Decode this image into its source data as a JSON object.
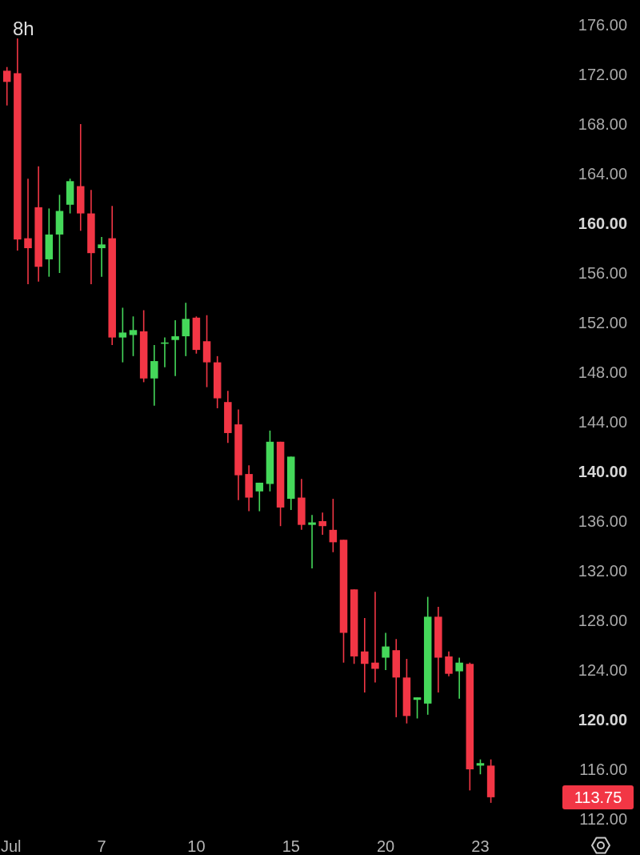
{
  "chart_data": {
    "type": "candlestick",
    "title": "8h",
    "categories": [
      "Jul",
      null,
      null,
      null,
      null,
      null,
      null,
      null,
      null,
      "7",
      null,
      null,
      null,
      null,
      null,
      null,
      null,
      null,
      "10",
      null,
      null,
      null,
      null,
      null,
      null,
      null,
      null,
      "15",
      null,
      null,
      null,
      null,
      null,
      null,
      null,
      null,
      "20",
      null,
      null,
      null,
      null,
      null,
      null,
      null,
      null,
      "23",
      null
    ],
    "ohlc": [
      [
        172.3,
        172.6,
        169.5,
        171.4
      ],
      [
        172.1,
        174.9,
        157.8,
        158.7
      ],
      [
        158.8,
        163.6,
        155.1,
        158.0
      ],
      [
        161.3,
        164.6,
        155.3,
        156.5
      ],
      [
        157.1,
        161.2,
        155.7,
        159.1
      ],
      [
        159.1,
        162.3,
        156.0,
        161.0
      ],
      [
        161.5,
        163.6,
        160.8,
        163.4
      ],
      [
        163.0,
        168.0,
        159.4,
        160.8
      ],
      [
        160.8,
        162.7,
        155.1,
        157.6
      ],
      [
        158.0,
        158.9,
        155.7,
        158.3
      ],
      [
        158.8,
        161.4,
        150.2,
        150.8
      ],
      [
        150.8,
        153.2,
        148.8,
        151.2
      ],
      [
        151.0,
        152.5,
        149.3,
        151.4
      ],
      [
        151.3,
        153.0,
        147.2,
        147.5
      ],
      [
        147.5,
        150.2,
        145.3,
        148.9
      ],
      [
        150.4,
        150.8,
        148.4,
        150.4
      ],
      [
        150.6,
        152.2,
        147.7,
        150.9
      ],
      [
        150.9,
        153.6,
        149.3,
        152.3
      ],
      [
        152.4,
        152.5,
        149.5,
        149.8
      ],
      [
        150.5,
        152.6,
        146.8,
        148.8
      ],
      [
        148.8,
        149.3,
        145.1,
        145.9
      ],
      [
        145.6,
        146.5,
        142.3,
        143.1
      ],
      [
        143.8,
        145.0,
        137.7,
        139.7
      ],
      [
        139.8,
        140.5,
        136.8,
        137.9
      ],
      [
        138.4,
        139.1,
        136.8,
        139.1
      ],
      [
        139.0,
        143.3,
        138.4,
        142.4
      ],
      [
        142.4,
        142.4,
        135.6,
        137.1
      ],
      [
        137.8,
        141.2,
        136.9,
        141.2
      ],
      [
        137.9,
        139.4,
        135.3,
        135.7
      ],
      [
        135.7,
        136.5,
        132.2,
        135.9
      ],
      [
        136.0,
        136.7,
        134.9,
        135.6
      ],
      [
        135.3,
        137.8,
        133.5,
        134.3
      ],
      [
        134.5,
        134.5,
        124.6,
        127.0
      ],
      [
        130.5,
        130.5,
        124.5,
        125.1
      ],
      [
        125.5,
        128.2,
        122.2,
        124.5
      ],
      [
        124.6,
        130.3,
        123.0,
        124.1
      ],
      [
        125.0,
        127.0,
        124.0,
        125.9
      ],
      [
        125.6,
        126.5,
        120.2,
        123.4
      ],
      [
        123.4,
        124.9,
        119.7,
        120.3
      ],
      [
        121.6,
        121.8,
        120.1,
        121.8
      ],
      [
        121.3,
        129.9,
        120.4,
        128.3
      ],
      [
        128.3,
        129.1,
        122.2,
        125.0
      ],
      [
        125.1,
        125.5,
        123.5,
        123.7
      ],
      [
        123.9,
        125.0,
        121.7,
        124.6
      ],
      [
        124.5,
        124.6,
        114.3,
        116.0
      ],
      [
        116.3,
        116.8,
        115.6,
        116.5
      ],
      [
        116.3,
        116.8,
        113.3,
        113.75
      ]
    ],
    "colors": [
      "#f23645",
      "#f23645",
      "#f23645",
      "#f23645",
      "#45d85a",
      "#45d85a",
      "#45d85a",
      "#f23645",
      "#f23645",
      "#45d85a",
      "#f23645",
      "#45d85a",
      "#45d85a",
      "#f23645",
      "#45d85a",
      "#45d85a",
      "#45d85a",
      "#45d85a",
      "#f23645",
      "#f23645",
      "#f23645",
      "#f23645",
      "#f23645",
      "#f23645",
      "#45d85a",
      "#45d85a",
      "#f23645",
      "#45d85a",
      "#f23645",
      "#45d85a",
      "#f23645",
      "#f23645",
      "#f23645",
      "#f23645",
      "#f23645",
      "#f23645",
      "#45d85a",
      "#f23645",
      "#f23645",
      "#45d85a",
      "#45d85a",
      "#f23645",
      "#f23645",
      "#45d85a",
      "#f23645",
      "#45d85a",
      "#f23645"
    ],
    "ylim": [
      112,
      178.0
    ],
    "yticks": [
      {
        "value": 176,
        "label": "176.00"
      },
      {
        "value": 172,
        "label": "172.00"
      },
      {
        "value": 168,
        "label": "168.00"
      },
      {
        "value": 164,
        "label": "164.00"
      },
      {
        "value": 160,
        "label": "160.00"
      },
      {
        "value": 156,
        "label": "156.00"
      },
      {
        "value": 152,
        "label": "152.00"
      },
      {
        "value": 148,
        "label": "148.00"
      },
      {
        "value": 144,
        "label": "144.00"
      },
      {
        "value": 140,
        "label": "140.00"
      },
      {
        "value": 136,
        "label": "136.00"
      },
      {
        "value": 132,
        "label": "132.00"
      },
      {
        "value": 128,
        "label": "128.00"
      },
      {
        "value": 124,
        "label": "124.00"
      },
      {
        "value": 120,
        "label": "120.00"
      },
      {
        "value": 116,
        "label": "116.00"
      },
      {
        "value": 112,
        "label": "112.00"
      }
    ],
    "annotations": [
      "113.75"
    ]
  }
}
